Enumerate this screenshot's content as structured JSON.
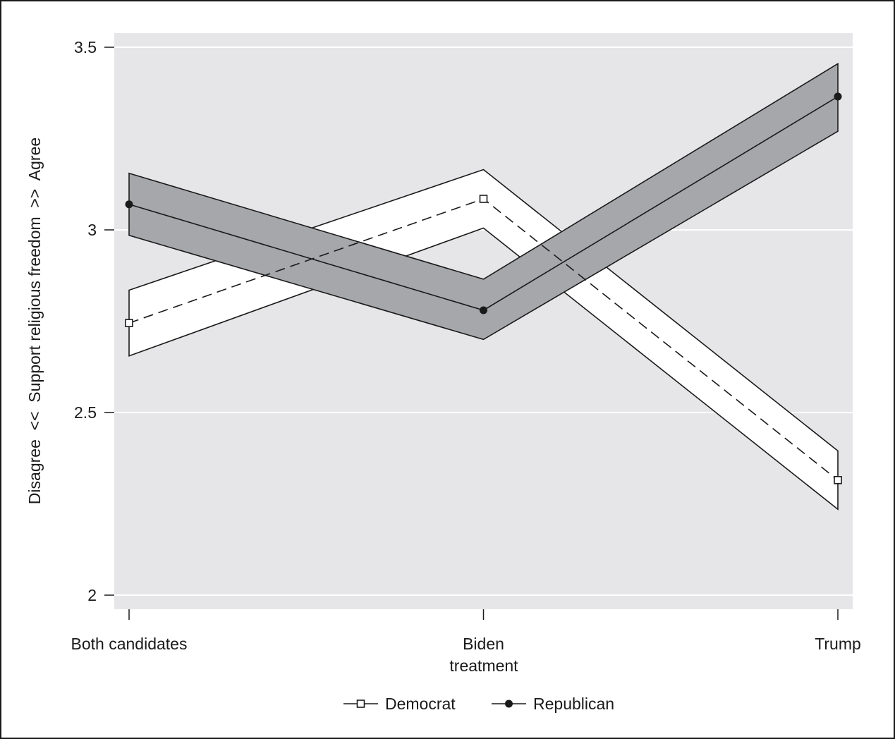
{
  "chart_data": {
    "type": "line",
    "title": "",
    "xlabel": "treatment",
    "ylabel": "Disagree  <<  Support religious freedom  >>  Agree",
    "categories": [
      "Both candidates",
      "Biden",
      "Trump"
    ],
    "ylim": [
      2,
      3.5
    ],
    "yticks": [
      2,
      2.5,
      3,
      3.5
    ],
    "ytick_labels": [
      "2",
      "2.5",
      "3",
      "3.5"
    ],
    "grid": true,
    "legend_position": "bottom",
    "series": [
      {
        "name": "Democrat",
        "values": [
          2.745,
          3.085,
          2.315
        ],
        "ci_lower": [
          2.655,
          3.005,
          2.235
        ],
        "ci_upper": [
          2.835,
          3.165,
          2.395
        ],
        "marker": "hollow-square",
        "line_style": "dashed",
        "band_color": "#ffffff"
      },
      {
        "name": "Republican",
        "values": [
          3.07,
          2.78,
          3.365
        ],
        "ci_lower": [
          2.985,
          2.7,
          3.27
        ],
        "ci_upper": [
          3.155,
          2.865,
          3.455
        ],
        "marker": "filled-circle",
        "line_style": "solid",
        "band_color": "#a6a7ab"
      }
    ],
    "colors": {
      "plot_background": "#e6e6e8",
      "gridline": "#ffffff",
      "line": "#1a1a1a"
    }
  }
}
